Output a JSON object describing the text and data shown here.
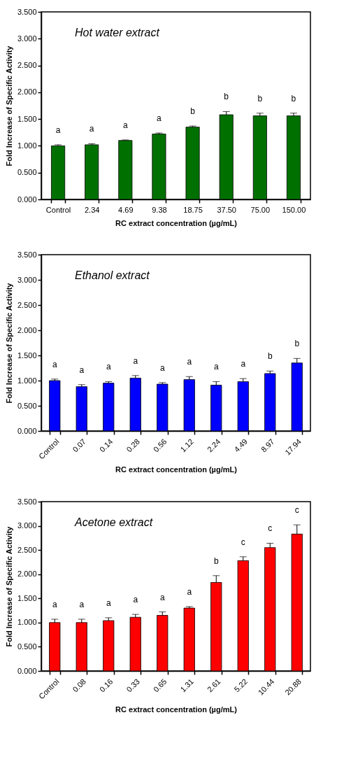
{
  "chart_data": [
    {
      "type": "bar",
      "title": "Hot water extract",
      "xlabel": "RC extract concentration (µg/mL)",
      "ylabel": "Fold Increase of Specific Activity",
      "categories": [
        "Control",
        "2.34",
        "4.69",
        "9.38",
        "18.75",
        "37.50",
        "75.00",
        "150.00"
      ],
      "series": [
        {
          "color": "#007000",
          "values": [
            1.0,
            1.02,
            1.1,
            1.22,
            1.35,
            1.58,
            1.56,
            1.56
          ],
          "errors": [
            0.02,
            0.02,
            0.01,
            0.02,
            0.02,
            0.06,
            0.05,
            0.05
          ],
          "value_labels": [
            "a",
            "a",
            "a",
            "a",
            "b",
            "b",
            "b",
            "b"
          ]
        }
      ],
      "ylim": [
        0,
        3.5
      ],
      "yticks": [
        {
          "value": 0,
          "label": "0.000"
        },
        {
          "value": 0.5,
          "label": "0.500"
        },
        {
          "value": 1,
          "label": "1.000"
        },
        {
          "value": 1.5,
          "label": "1.500"
        },
        {
          "value": 2,
          "label": "2.000"
        },
        {
          "value": 2.5,
          "label": "2.500"
        },
        {
          "value": 3,
          "label": "3.000"
        },
        {
          "value": 3.5,
          "label": "3.500"
        }
      ],
      "grid": false
    },
    {
      "type": "bar",
      "title": "Ethanol extract",
      "xlabel": "RC extract concentration (µg/mL)",
      "ylabel": "Fold Increase of Specific Activity",
      "categories": [
        "Control",
        "0.07",
        "0.14",
        "0.28",
        "0.56",
        "1.12",
        "2.24",
        "4.49",
        "8.97",
        "17.94"
      ],
      "series": [
        {
          "color": "#0000ff",
          "values": [
            1.0,
            0.88,
            0.95,
            1.05,
            0.93,
            1.02,
            0.91,
            0.98,
            1.14,
            1.35
          ],
          "errors": [
            0.03,
            0.04,
            0.03,
            0.05,
            0.03,
            0.06,
            0.07,
            0.06,
            0.05,
            0.09
          ],
          "value_labels": [
            "a",
            "a",
            "a",
            "a",
            "a",
            "a",
            "a",
            "a",
            "b",
            "b"
          ]
        }
      ],
      "ylim": [
        0,
        3.5
      ],
      "yticks": [
        {
          "value": 0,
          "label": "0.000"
        },
        {
          "value": 0.5,
          "label": "0.500"
        },
        {
          "value": 1,
          "label": "1.000"
        },
        {
          "value": 1.5,
          "label": "1.500"
        },
        {
          "value": 2,
          "label": "2.000"
        },
        {
          "value": 2.5,
          "label": "2.500"
        },
        {
          "value": 3,
          "label": "3.000"
        },
        {
          "value": 3.5,
          "label": "3.500"
        }
      ],
      "grid": false
    },
    {
      "type": "bar",
      "title": "Acetone extract",
      "xlabel": "RC extract concentration (µg/mL)",
      "ylabel": "Fold Increase of Specific Activity",
      "categories": [
        "Control",
        "0.08",
        "0.16",
        "0.33",
        "0.65",
        "1.31",
        "2.61",
        "5.22",
        "10.44",
        "20.88"
      ],
      "series": [
        {
          "color": "#ff0000",
          "values": [
            1.0,
            1.0,
            1.04,
            1.11,
            1.15,
            1.3,
            1.83,
            2.28,
            2.55,
            2.83
          ],
          "errors": [
            0.07,
            0.07,
            0.06,
            0.06,
            0.07,
            0.03,
            0.14,
            0.08,
            0.09,
            0.19
          ],
          "value_labels": [
            "a",
            "a",
            "a",
            "a",
            "a",
            "a",
            "b",
            "c",
            "c",
            "c"
          ]
        }
      ],
      "ylim": [
        0,
        3.5
      ],
      "yticks": [
        {
          "value": 0,
          "label": "0.000"
        },
        {
          "value": 0.5,
          "label": "0.500"
        },
        {
          "value": 1,
          "label": "1.000"
        },
        {
          "value": 1.5,
          "label": "1.500"
        },
        {
          "value": 2,
          "label": "2.000"
        },
        {
          "value": 2.5,
          "label": "2.500"
        },
        {
          "value": 3,
          "label": "3.000"
        },
        {
          "value": 3.5,
          "label": "3.500"
        }
      ],
      "grid": false
    }
  ]
}
